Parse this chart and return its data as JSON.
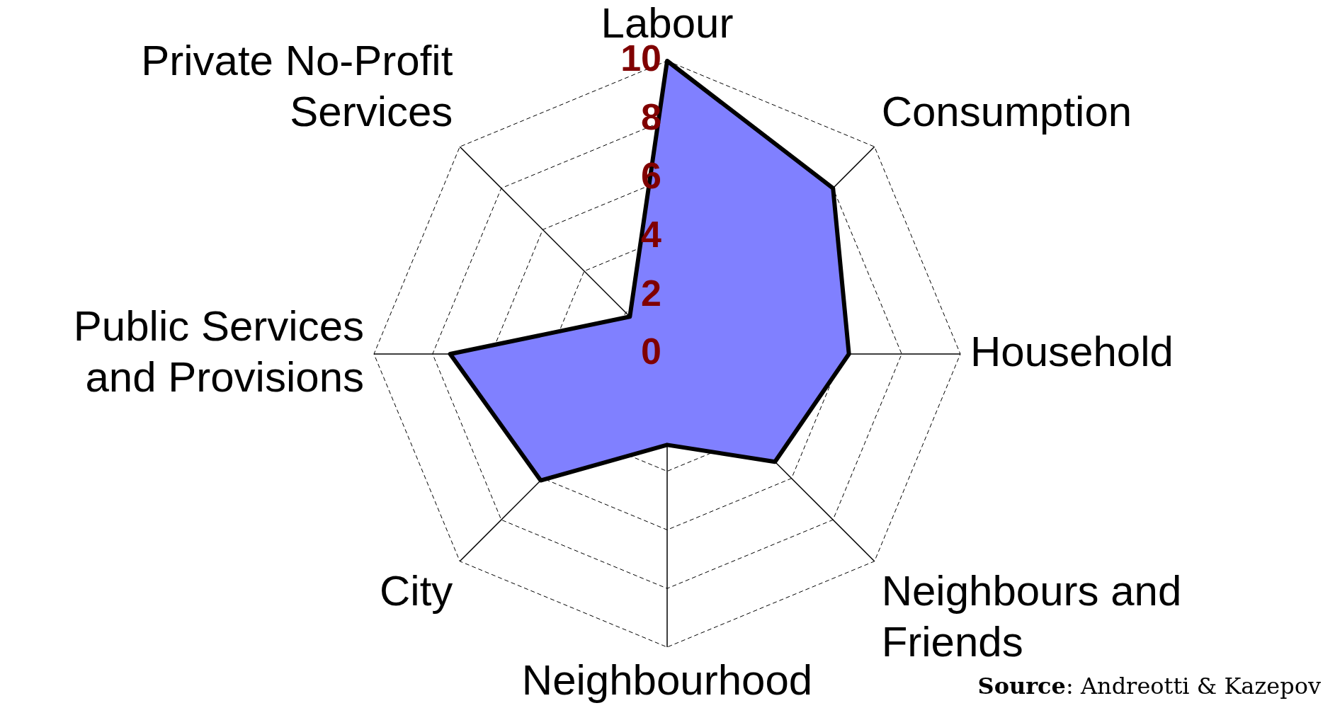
{
  "chart_data": {
    "type": "radar",
    "categories": [
      "Labour",
      "Consumption",
      "Household",
      "Neighbours and Friends",
      "Neighbourhood",
      "City",
      "Public Services and Provisions",
      "Private No-Profit Services"
    ],
    "series": [
      {
        "color": "#8080ff",
        "values": [
          10,
          8,
          6.2,
          5.2,
          3.1,
          6.1,
          7.4,
          1.8
        ]
      }
    ],
    "ylim": [
      0,
      10
    ],
    "yticks": [
      0,
      2,
      4,
      6,
      8,
      10
    ],
    "grid": true,
    "legend": false,
    "marker": "none",
    "line_style": "solid",
    "annotations": [
      "**Source**: Andreotti & Kazepov"
    ]
  }
}
